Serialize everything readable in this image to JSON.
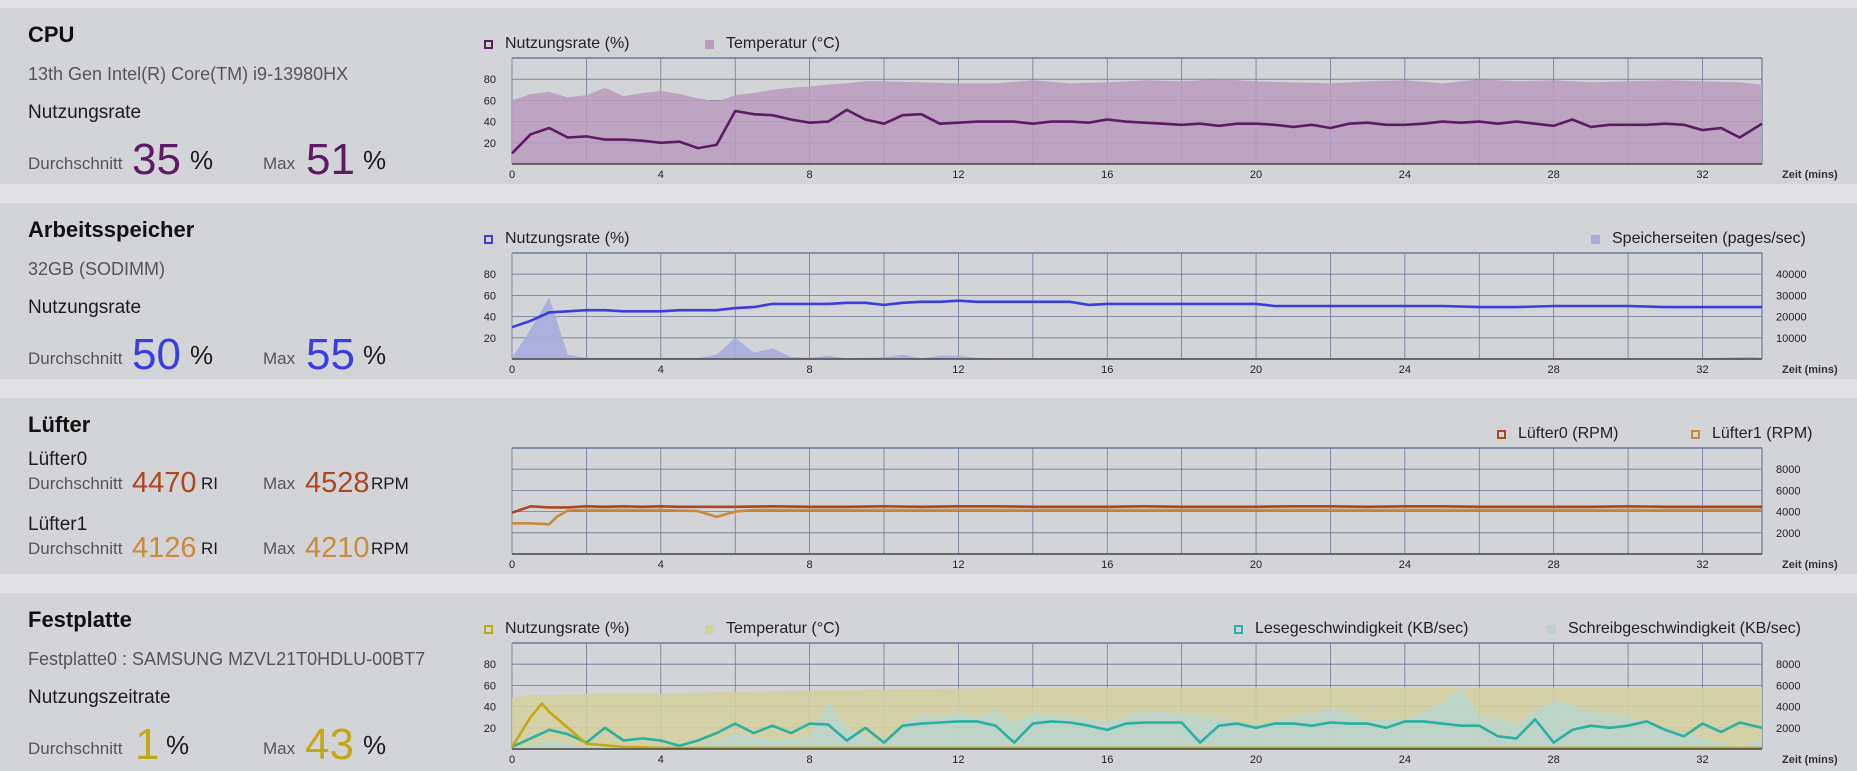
{
  "colors": {
    "cpu": "#5e1a66",
    "cpu_fill": "#b89bbd",
    "memory": "#3a3ddf",
    "memory_fill": "#a7acdd",
    "fan0": "#b0461d",
    "fan1": "#c88b3a",
    "disk": "#c4a818",
    "disk_fill": "#d5d09f",
    "disk_read": "#2ab0a4",
    "disk_write": "#b8d4d0",
    "grid": "#6b7a99"
  },
  "cpu": {
    "title": "CPU",
    "subtitle": "13th Gen Intel(R) Core(TM) i9-13980HX",
    "metric_label": "Nutzungsrate",
    "avg_label": "Durchschnitt",
    "avg_value": "35",
    "avg_unit": "%",
    "max_label": "Max",
    "max_value": "51",
    "max_unit": "%",
    "legend": [
      "Nutzungsrate (%)",
      "Temperatur (°C)"
    ]
  },
  "memory": {
    "title": "Arbeitsspeicher",
    "subtitle": "32GB (SODIMM)",
    "metric_label": "Nutzungsrate",
    "avg_label": "Durchschnitt",
    "avg_value": "50",
    "avg_unit": "%",
    "max_label": "Max",
    "max_value": "55",
    "max_unit": "%",
    "legend": [
      "Nutzungsrate (%)",
      "Speicherseiten (pages/sec)"
    ]
  },
  "fan": {
    "title": "Lüfter",
    "fan0_name": "Lüfter0",
    "fan0_avg_label": "Durchschnitt",
    "fan0_avg_value": "4470",
    "fan0_avg_unit": "RI",
    "fan0_max_label": "Max",
    "fan0_max_value": "4528",
    "fan0_max_unit": "RPM",
    "fan1_name": "Lüfter1",
    "fan1_avg_label": "Durchschnitt",
    "fan1_avg_value": "4126",
    "fan1_avg_unit": "RI",
    "fan1_max_label": "Max",
    "fan1_max_value": "4210",
    "fan1_max_unit": "RPM",
    "legend": [
      "Lüfter0 (RPM)",
      "Lüfter1 (RPM)"
    ]
  },
  "disk": {
    "title": "Festplatte",
    "subtitle": "Festplatte0 : SAMSUNG MZVL21T0HDLU-00BT7",
    "metric_label": "Nutzungszeitrate",
    "avg_label": "Durchschnitt",
    "avg_value": "1",
    "avg_unit": "%",
    "max_label": "Max",
    "max_value": "43",
    "max_unit": "%",
    "legend": [
      "Nutzungsrate (%)",
      "Temperatur (°C)",
      "Lesegeschwindigkeit (KB/sec)",
      "Schreibgeschwindigkeit (KB/sec)"
    ]
  },
  "chart_data": [
    {
      "id": "cpu",
      "type": "line",
      "xlabel": "Zeit (mins)",
      "xticks": [
        0,
        4,
        8,
        12,
        16,
        20,
        24,
        28,
        32
      ],
      "xlim": [
        0,
        33.6
      ],
      "yticks_left": [
        20,
        40,
        60,
        80
      ],
      "ylim_left": [
        0,
        100
      ],
      "series": [
        {
          "name": "Temperatur (°C)",
          "type": "area",
          "axis": "left",
          "x": [
            0,
            0.5,
            1,
            1.5,
            2,
            2.5,
            3,
            3.5,
            4,
            4.5,
            5,
            5.5,
            6,
            6.5,
            7,
            7.5,
            8,
            8.5,
            9,
            9.5,
            10,
            11,
            12,
            13,
            14,
            15,
            16,
            17,
            18,
            19,
            20,
            21,
            22,
            23,
            24,
            25,
            26,
            27,
            28,
            29,
            30,
            31,
            32,
            33,
            33.6
          ],
          "y": [
            60,
            66,
            68,
            63,
            65,
            72,
            64,
            67,
            69,
            66,
            62,
            59,
            65,
            67,
            70,
            72,
            73,
            75,
            76,
            78,
            78,
            77,
            76,
            76,
            79,
            76,
            77,
            79,
            78,
            80,
            78,
            77,
            76,
            78,
            79,
            76,
            80,
            78,
            79,
            77,
            78,
            79,
            78,
            77,
            75
          ]
        },
        {
          "name": "Nutzungsrate (%)",
          "type": "line",
          "axis": "left",
          "x": [
            0,
            0.5,
            1,
            1.5,
            2,
            2.5,
            3,
            3.5,
            4,
            4.5,
            5,
            5.5,
            6,
            6.5,
            7,
            7.5,
            8,
            8.5,
            9,
            9.5,
            10,
            10.5,
            11,
            11.5,
            12,
            12.5,
            13,
            13.5,
            14,
            14.5,
            15,
            15.5,
            16,
            16.5,
            17,
            17.5,
            18,
            18.5,
            19,
            19.5,
            20,
            20.5,
            21,
            21.5,
            22,
            22.5,
            23,
            23.5,
            24,
            24.5,
            25,
            25.5,
            26,
            26.5,
            27,
            27.5,
            28,
            28.5,
            29,
            29.5,
            30,
            30.5,
            31,
            31.5,
            32,
            32.5,
            33,
            33.6
          ],
          "y": [
            10,
            28,
            34,
            25,
            26,
            23,
            23,
            22,
            20,
            21,
            15,
            18,
            50,
            47,
            46,
            42,
            39,
            40,
            51,
            42,
            38,
            46,
            47,
            38,
            39,
            40,
            40,
            40,
            38,
            40,
            40,
            39,
            42,
            40,
            39,
            38,
            37,
            38,
            36,
            38,
            38,
            37,
            35,
            37,
            34,
            38,
            39,
            37,
            37,
            38,
            40,
            39,
            40,
            38,
            40,
            38,
            36,
            42,
            35,
            37,
            37,
            37,
            38,
            37,
            32,
            34,
            25,
            38
          ]
        }
      ]
    },
    {
      "id": "memory",
      "type": "line",
      "xlabel": "Zeit (mins)",
      "xticks": [
        0,
        4,
        8,
        12,
        16,
        20,
        24,
        28,
        32
      ],
      "xlim": [
        0,
        33.6
      ],
      "yticks_left": [
        20,
        40,
        60,
        80
      ],
      "ylim_left": [
        0,
        100
      ],
      "yticks_right": [
        10000,
        20000,
        30000,
        40000
      ],
      "ylim_right": [
        0,
        50000
      ],
      "series": [
        {
          "name": "Speicherseiten (pages/sec)",
          "type": "area",
          "axis": "right",
          "x": [
            0,
            0.5,
            1,
            1.5,
            2,
            3,
            4,
            5,
            5.5,
            6,
            6.5,
            7,
            7.5,
            8,
            8.5,
            9,
            10,
            10.5,
            11,
            11.5,
            12,
            12.5,
            13,
            14,
            16,
            20,
            24,
            28,
            32,
            33.3,
            33.6
          ],
          "y": [
            500,
            14000,
            29000,
            2000,
            500,
            500,
            500,
            500,
            2000,
            10000,
            3000,
            5000,
            1000,
            500,
            1500,
            300,
            800,
            2000,
            300,
            1500,
            1500,
            500,
            300,
            300,
            300,
            300,
            300,
            300,
            300,
            1000,
            500
          ]
        },
        {
          "name": "Nutzungsrate (%)",
          "type": "line",
          "axis": "left",
          "x": [
            0,
            0.5,
            1,
            1.5,
            2,
            2.5,
            3,
            3.5,
            4,
            4.5,
            5,
            5.5,
            6,
            6.5,
            7,
            7.5,
            8,
            8.5,
            9,
            9.5,
            10,
            10.5,
            11,
            11.5,
            12,
            12.5,
            13,
            13.5,
            14,
            14.5,
            15,
            15.5,
            16,
            17,
            18,
            19,
            20,
            20.5,
            21,
            22,
            23,
            24,
            25,
            26,
            27,
            28,
            29,
            30,
            31,
            32,
            33,
            33.6
          ],
          "y": [
            30,
            36,
            44,
            45,
            46,
            46,
            45,
            45,
            45,
            46,
            46,
            46,
            48,
            49,
            52,
            52,
            52,
            52,
            53,
            53,
            51,
            53,
            54,
            54,
            55,
            54,
            54,
            54,
            54,
            54,
            54,
            51,
            52,
            52,
            52,
            52,
            52,
            50,
            50,
            50,
            50,
            50,
            50,
            49,
            49,
            50,
            50,
            50,
            49,
            49,
            49,
            49
          ]
        }
      ]
    },
    {
      "id": "fan",
      "type": "line",
      "xlabel": "Zeit (mins)",
      "xticks": [
        0,
        4,
        8,
        12,
        16,
        20,
        24,
        28,
        32
      ],
      "xlim": [
        0,
        33.6
      ],
      "yticks_right": [
        2000,
        4000,
        6000,
        8000
      ],
      "ylim_right": [
        0,
        10000
      ],
      "series": [
        {
          "name": "Lüfter1 (RPM)",
          "type": "line",
          "axis": "right",
          "x": [
            0,
            0.5,
            1,
            1.2,
            1.5,
            2,
            3,
            4,
            5,
            5.5,
            6,
            6.5,
            7,
            8,
            10,
            12,
            14,
            16,
            18,
            20,
            22,
            24,
            26,
            28,
            30,
            32,
            33.6
          ],
          "y": [
            2900,
            2900,
            2800,
            3500,
            4100,
            4150,
            4150,
            4150,
            4050,
            3500,
            4000,
            4150,
            4150,
            4150,
            4150,
            4150,
            4150,
            4150,
            4150,
            4150,
            4150,
            4150,
            4150,
            4150,
            4150,
            4150,
            4150
          ]
        },
        {
          "name": "Lüfter0 (RPM)",
          "type": "line",
          "axis": "right",
          "x": [
            0,
            0.5,
            1,
            1.5,
            2,
            2.5,
            3,
            3.5,
            4,
            4.5,
            5,
            6,
            7,
            8,
            9,
            10,
            11,
            12,
            13,
            14,
            15,
            16,
            17,
            18,
            19,
            20,
            21,
            22,
            23,
            24,
            25,
            26,
            27,
            28,
            29,
            30,
            31,
            32,
            33,
            33.6
          ],
          "y": [
            3900,
            4500,
            4400,
            4400,
            4500,
            4450,
            4500,
            4450,
            4500,
            4450,
            4450,
            4450,
            4500,
            4450,
            4450,
            4500,
            4450,
            4500,
            4500,
            4450,
            4450,
            4450,
            4500,
            4450,
            4450,
            4450,
            4500,
            4500,
            4450,
            4500,
            4500,
            4450,
            4450,
            4450,
            4450,
            4500,
            4450,
            4450,
            4450,
            4450
          ]
        }
      ]
    },
    {
      "id": "disk",
      "type": "line",
      "xlabel": "Zeit (mins)",
      "xticks": [
        0,
        4,
        8,
        12,
        16,
        20,
        24,
        28,
        32
      ],
      "xlim": [
        0,
        33.6
      ],
      "yticks_left": [
        20,
        40,
        60,
        80
      ],
      "ylim_left": [
        0,
        100
      ],
      "yticks_right": [
        2000,
        4000,
        6000,
        8000
      ],
      "ylim_right": [
        0,
        10000
      ],
      "series": [
        {
          "name": "Temperatur (°C)",
          "type": "area",
          "axis": "left",
          "x": [
            0,
            0.5,
            1,
            2,
            4,
            6,
            8,
            10,
            12,
            14,
            16,
            20,
            24,
            28,
            32,
            33.6
          ],
          "y": [
            48,
            51,
            51,
            52,
            52,
            54,
            55,
            56,
            57,
            58,
            58,
            58,
            58,
            58,
            58,
            58
          ]
        },
        {
          "name": "Schreibgeschwindigkeit (KB/sec)",
          "type": "area",
          "axis": "right",
          "x": [
            0,
            1,
            2,
            3,
            4,
            5,
            5.5,
            6,
            7,
            8,
            8.5,
            9,
            10,
            10.5,
            11,
            11.5,
            12,
            12.5,
            13,
            13.5,
            14,
            15,
            16,
            17,
            18,
            19,
            20,
            21,
            22,
            23,
            24,
            25,
            25.5,
            26,
            27,
            28,
            29,
            30,
            31,
            32,
            33,
            33.6
          ],
          "y": [
            0,
            800,
            200,
            300,
            200,
            400,
            800,
            1500,
            800,
            1200,
            4400,
            2000,
            500,
            2500,
            3200,
            3000,
            3600,
            3000,
            3800,
            2500,
            3400,
            3000,
            2600,
            3600,
            3400,
            3000,
            2200,
            3000,
            3800,
            2800,
            2800,
            4400,
            5800,
            3200,
            2400,
            4600,
            3600,
            3000,
            2000,
            1000,
            200,
            1000
          ]
        },
        {
          "name": "Lesegeschwindigkeit (KB/sec)",
          "type": "line",
          "axis": "right",
          "x": [
            0,
            0.5,
            1,
            1.5,
            2,
            2.5,
            3,
            3.5,
            4,
            4.5,
            5,
            5.5,
            6,
            6.5,
            7,
            7.5,
            8,
            8.5,
            9,
            9.5,
            10,
            10.5,
            11,
            11.5,
            12,
            12.5,
            13,
            13.5,
            14,
            14.5,
            15,
            15.5,
            16,
            16.5,
            17,
            17.5,
            18,
            18.5,
            19,
            19.5,
            20,
            20.5,
            21,
            21.5,
            22,
            22.5,
            23,
            23.5,
            24,
            24.5,
            25,
            25.5,
            26,
            26.5,
            27,
            27.5,
            28,
            28.5,
            29,
            29.5,
            30,
            30.5,
            31,
            31.5,
            32,
            32.5,
            33,
            33.6
          ],
          "y": [
            200,
            1000,
            1800,
            1400,
            600,
            2000,
            800,
            1000,
            800,
            300,
            800,
            1500,
            2400,
            1500,
            2200,
            1500,
            2400,
            2300,
            800,
            2000,
            600,
            2200,
            2400,
            2500,
            2600,
            2600,
            2200,
            600,
            2400,
            2600,
            2500,
            2200,
            1800,
            2400,
            2500,
            2500,
            2500,
            600,
            2200,
            2400,
            2000,
            2400,
            2400,
            2200,
            2500,
            2400,
            2400,
            2000,
            2600,
            2600,
            2400,
            2200,
            2200,
            1200,
            1000,
            2800,
            600,
            1800,
            2200,
            2000,
            2200,
            2600,
            1800,
            1200,
            2400,
            1600,
            2500,
            2000
          ]
        },
        {
          "name": "Nutzungsrate (%)",
          "type": "line",
          "axis": "left",
          "x": [
            0,
            0.5,
            0.8,
            1,
            1.5,
            2,
            3,
            4,
            5,
            6,
            8,
            10,
            12,
            14,
            16,
            20,
            24,
            28,
            32,
            33.6
          ],
          "y": [
            2,
            30,
            43,
            35,
            20,
            5,
            2,
            1,
            1,
            1,
            1,
            1,
            1,
            1,
            1,
            1,
            1,
            1,
            1,
            1
          ]
        }
      ]
    }
  ]
}
